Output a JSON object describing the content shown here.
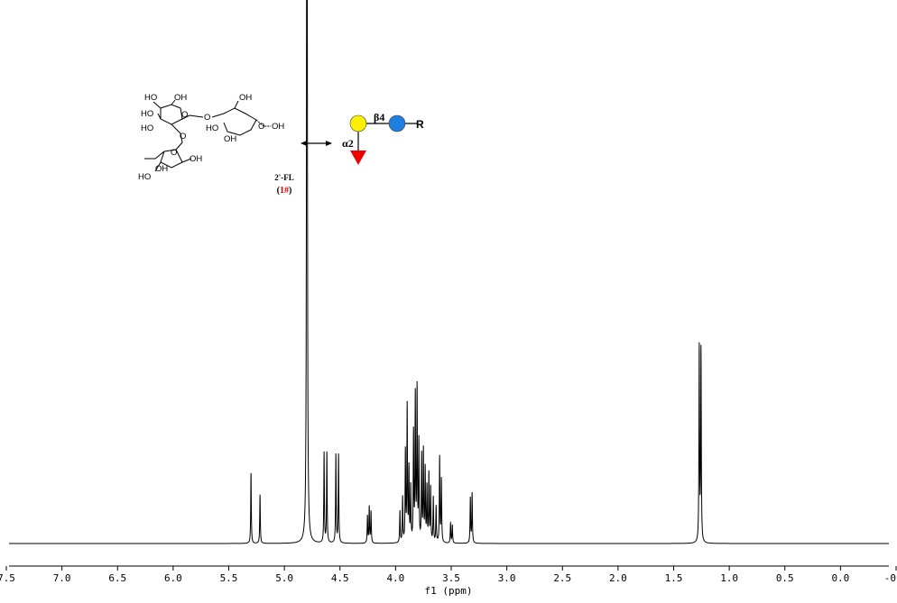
{
  "chart_data": {
    "type": "nmr",
    "xlabel": "f1 (ppm)",
    "xlim": [
      7.5,
      -0.5
    ],
    "ylim": [
      0,
      600
    ],
    "xticks": [
      {
        "value": 7.5,
        "label": "7.5"
      },
      {
        "value": 7,
        "label": "7.0"
      },
      {
        "value": 6.5,
        "label": "6.5"
      },
      {
        "value": 6,
        "label": "6.0"
      },
      {
        "value": 5.5,
        "label": "5.5"
      },
      {
        "value": 5,
        "label": "5.0"
      },
      {
        "value": 4.5,
        "label": "4.5"
      },
      {
        "value": 4,
        "label": "4.0"
      },
      {
        "value": 3.5,
        "label": "3.5"
      },
      {
        "value": 3,
        "label": "3.0"
      },
      {
        "value": 2.5,
        "label": "2.5"
      },
      {
        "value": 2,
        "label": "2.0"
      },
      {
        "value": 1.5,
        "label": "1.5"
      },
      {
        "value": 1,
        "label": "1.0"
      },
      {
        "value": 0.5,
        "label": "0.5"
      },
      {
        "value": 0,
        "label": "0.0"
      },
      {
        "value": -0.5,
        "label": "-0.5"
      }
    ],
    "color": "#000000",
    "peaks": {
      "ppm": [
        5.3,
        5.219,
        4.797,
        4.643,
        4.618,
        4.537,
        4.513,
        4.253,
        4.237,
        4.221,
        3.961,
        3.937,
        3.912,
        3.896,
        3.88,
        3.864,
        3.839,
        3.823,
        3.807,
        3.791,
        3.766,
        3.75,
        3.734,
        3.718,
        3.701,
        3.685,
        3.661,
        3.636,
        3.604,
        3.588,
        3.506,
        3.49,
        3.328,
        3.312,
        1.27,
        1.254
      ],
      "intensity": [
        78,
        54,
        1500,
        100,
        100,
        98,
        98,
        30,
        40,
        35,
        35,
        50,
        100,
        150,
        80,
        60,
        120,
        160,
        168,
        110,
        95,
        100,
        80,
        60,
        75,
        60,
        50,
        40,
        95,
        70,
        22,
        20,
        50,
        55,
        216,
        213
      ]
    }
  },
  "structure": {
    "labels": [
      "HO",
      "OH",
      "HO",
      "O",
      "O",
      "OH",
      "O",
      "HO",
      "OH",
      "HO",
      "O",
      "OH",
      "O",
      "OH",
      "HO",
      "OH"
    ]
  },
  "glycan": {
    "linkage_beta": "β4",
    "linkage_alpha": "α2",
    "aglycone": "R"
  },
  "compound": {
    "name": "2'-FL",
    "label_parts": [
      "(",
      "1#",
      ")"
    ]
  }
}
